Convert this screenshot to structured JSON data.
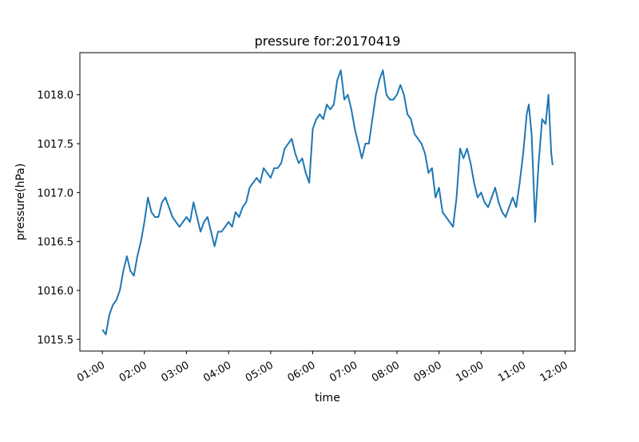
{
  "chart_data": {
    "type": "line",
    "title": "pressure for:20170419",
    "x_label": "time",
    "y_label": "pressure(hPa)",
    "color": "#1f77b4",
    "x": [
      "01:00",
      "01:05",
      "01:10",
      "01:15",
      "01:20",
      "01:25",
      "01:30",
      "01:35",
      "01:40",
      "01:45",
      "01:50",
      "01:55",
      "02:00",
      "02:05",
      "02:10",
      "02:15",
      "02:20",
      "02:25",
      "02:30",
      "02:35",
      "02:40",
      "02:45",
      "02:50",
      "02:55",
      "03:00",
      "03:05",
      "03:10",
      "03:15",
      "03:20",
      "03:25",
      "03:30",
      "03:35",
      "03:40",
      "03:45",
      "03:50",
      "03:55",
      "04:00",
      "04:05",
      "04:10",
      "04:15",
      "04:20",
      "04:25",
      "04:30",
      "04:35",
      "04:40",
      "04:45",
      "04:50",
      "04:55",
      "05:00",
      "05:05",
      "05:10",
      "05:15",
      "05:20",
      "05:25",
      "05:30",
      "05:35",
      "05:40",
      "05:45",
      "05:50",
      "05:55",
      "06:00",
      "06:05",
      "06:10",
      "06:15",
      "06:20",
      "06:25",
      "06:30",
      "06:35",
      "06:40",
      "06:45",
      "06:50",
      "06:55",
      "07:00",
      "07:05",
      "07:10",
      "07:15",
      "07:20",
      "07:25",
      "07:30",
      "07:35",
      "07:40",
      "07:45",
      "07:50",
      "07:55",
      "08:00",
      "08:05",
      "08:10",
      "08:15",
      "08:20",
      "08:25",
      "08:30",
      "08:35",
      "08:40",
      "08:45",
      "08:50",
      "08:55",
      "09:00",
      "09:05",
      "09:10",
      "09:15",
      "09:20",
      "09:25",
      "09:30",
      "09:35",
      "09:40",
      "09:45",
      "09:50",
      "09:55",
      "10:00",
      "10:05",
      "10:10",
      "10:15",
      "10:20",
      "10:25",
      "10:30",
      "10:35",
      "10:40",
      "10:45",
      "10:50",
      "10:55",
      "11:00",
      "11:05",
      "11:08",
      "11:12",
      "11:17",
      "11:22",
      "11:27",
      "11:32",
      "11:36",
      "11:40",
      "11:42"
    ],
    "values": [
      1015.6,
      1015.55,
      1015.75,
      1015.85,
      1015.9,
      1016.0,
      1016.2,
      1016.35,
      1016.2,
      1016.15,
      1016.35,
      1016.5,
      1016.7,
      1016.95,
      1016.8,
      1016.75,
      1016.75,
      1016.9,
      1016.95,
      1016.85,
      1016.75,
      1016.7,
      1016.65,
      1016.7,
      1016.75,
      1016.7,
      1016.9,
      1016.75,
      1016.6,
      1016.7,
      1016.75,
      1016.6,
      1016.45,
      1016.6,
      1016.6,
      1016.65,
      1016.7,
      1016.65,
      1016.8,
      1016.75,
      1016.85,
      1016.9,
      1017.05,
      1017.1,
      1017.15,
      1017.1,
      1017.25,
      1017.2,
      1017.15,
      1017.25,
      1017.25,
      1017.3,
      1017.45,
      1017.5,
      1017.55,
      1017.4,
      1017.3,
      1017.35,
      1017.2,
      1017.1,
      1017.65,
      1017.75,
      1017.8,
      1017.75,
      1017.9,
      1017.85,
      1017.9,
      1018.15,
      1018.25,
      1017.95,
      1018.0,
      1017.85,
      1017.65,
      1017.5,
      1017.35,
      1017.5,
      1017.5,
      1017.75,
      1018.0,
      1018.15,
      1018.25,
      1018.0,
      1017.95,
      1017.95,
      1018.0,
      1018.1,
      1018.0,
      1017.8,
      1017.75,
      1017.6,
      1017.55,
      1017.5,
      1017.4,
      1017.2,
      1017.25,
      1016.95,
      1017.05,
      1016.8,
      1016.75,
      1016.7,
      1016.65,
      1016.95,
      1017.45,
      1017.35,
      1017.45,
      1017.3,
      1017.1,
      1016.95,
      1017.0,
      1016.9,
      1016.85,
      1016.95,
      1017.05,
      1016.9,
      1016.8,
      1016.75,
      1016.85,
      1016.95,
      1016.85,
      1017.1,
      1017.4,
      1017.8,
      1017.9,
      1017.6,
      1016.7,
      1017.3,
      1017.75,
      1017.7,
      1018.0,
      1017.4,
      1017.28
    ],
    "xlim": [
      "00:28",
      "12:14"
    ],
    "xticks": [
      "01:00",
      "02:00",
      "03:00",
      "04:00",
      "05:00",
      "06:00",
      "07:00",
      "08:00",
      "09:00",
      "10:00",
      "11:00",
      "12:00"
    ],
    "ylim": [
      1015.38,
      1018.43
    ],
    "yticks": [
      1015.5,
      {
        "value": 1016,
        "label": "1016.0"
      },
      1016.5,
      {
        "value": 1017,
        "label": "1017.0"
      },
      1017.5,
      {
        "value": 1018,
        "label": "1018.0"
      }
    ]
  }
}
